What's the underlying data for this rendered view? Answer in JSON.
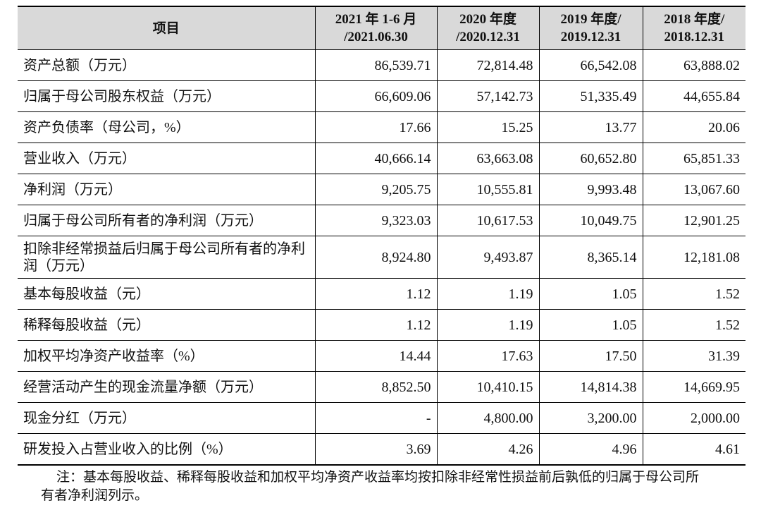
{
  "table": {
    "header": [
      "项目",
      "2021 年 1-6 月\n/2021.06.30",
      "2020 年度\n/2020.12.31",
      "2019 年度/\n2019.12.31",
      "2018 年度/\n2018.12.31"
    ],
    "rows": [
      [
        "资产总额（万元）",
        "86,539.71",
        "72,814.48",
        "66,542.08",
        "63,888.02"
      ],
      [
        "归属于母公司股东权益（万元）",
        "66,609.06",
        "57,142.73",
        "51,335.49",
        "44,655.84"
      ],
      [
        "资产负债率（母公司，%）",
        "17.66",
        "15.25",
        "13.77",
        "20.06"
      ],
      [
        "营业收入（万元）",
        "40,666.14",
        "63,663.08",
        "60,652.80",
        "65,851.33"
      ],
      [
        "净利润（万元）",
        "9,205.75",
        "10,555.81",
        "9,993.48",
        "13,067.60"
      ],
      [
        "归属于母公司所有者的净利润（万元）",
        "9,323.03",
        "10,617.53",
        "10,049.75",
        "12,901.25"
      ],
      [
        "扣除非经常损益后归属于母公司所有者的净利润（万元）",
        "8,924.80",
        "9,493.87",
        "8,365.14",
        "12,181.08"
      ],
      [
        "基本每股收益（元）",
        "1.12",
        "1.19",
        "1.05",
        "1.52"
      ],
      [
        "稀释每股收益（元）",
        "1.12",
        "1.19",
        "1.05",
        "1.52"
      ],
      [
        "加权平均净资产收益率（%）",
        "14.44",
        "17.63",
        "17.50",
        "31.39"
      ],
      [
        "经营活动产生的现金流量净额（万元）",
        "8,852.50",
        "10,410.15",
        "14,814.38",
        "14,669.95"
      ],
      [
        "现金分红（万元）",
        "-",
        "4,800.00",
        "3,200.00",
        "2,000.00"
      ],
      [
        "研发投入占营业收入的比例（%）",
        "3.69",
        "4.26",
        "4.96",
        "4.61"
      ]
    ]
  },
  "note": "注：基本每股收益、稀释每股收益和加权平均净资产收益率均按扣除非经常性损益前后孰低的归属于母公司所有者净利润列示。"
}
